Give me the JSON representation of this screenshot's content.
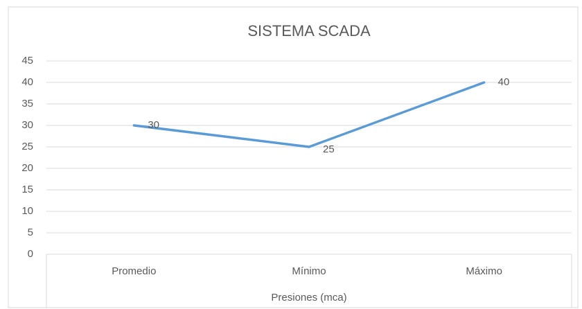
{
  "chart_data": {
    "type": "line",
    "title": "SISTEMA SCADA",
    "x_label": "Presiones (mca)",
    "categories": [
      "Promedio",
      "Mínimo",
      "Máximo"
    ],
    "values": [
      30,
      25,
      40
    ],
    "color": "#5b9bd5",
    "ylim": [
      0,
      45
    ],
    "yticks": [
      0,
      5,
      10,
      15,
      20,
      25,
      30,
      35,
      40,
      45
    ],
    "grid": true,
    "data_labels": true
  }
}
